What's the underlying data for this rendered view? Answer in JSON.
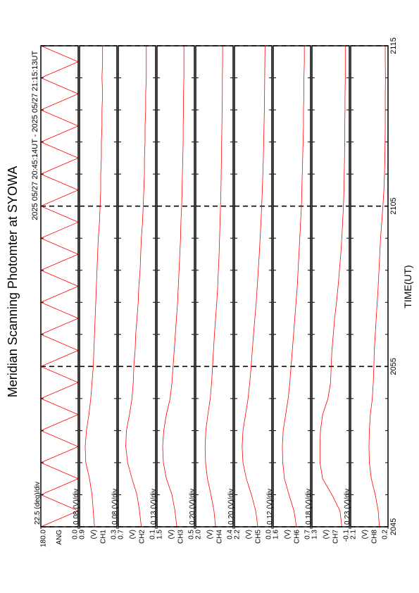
{
  "chart_data": {
    "type": "line",
    "title": "Meridian Scanning Photomter at SYOWA",
    "subtitle": "2025 05/27 20:45:14UT - 2025 05/27 21:15:13UT",
    "xlabel": "TIME(UT)",
    "xlim": [
      "2045",
      "2115"
    ],
    "xticks": [
      "2045",
      "2055",
      "2105",
      "2115"
    ],
    "xminorticks": [
      "2047",
      "2049",
      "2051",
      "2053",
      "2057",
      "2059",
      "2101",
      "2103",
      "2107",
      "2109",
      "2111",
      "2113"
    ],
    "x": [
      "2045",
      "2046",
      "2047",
      "2048",
      "2049",
      "2050",
      "2051",
      "2052",
      "2053",
      "2054",
      "2055",
      "2056",
      "2057",
      "2058",
      "2059",
      "2100",
      "2101",
      "2102",
      "2103",
      "2104",
      "2105",
      "2106",
      "2107",
      "2108",
      "2109",
      "2110",
      "2111",
      "2112",
      "2113",
      "2114",
      "2115"
    ],
    "panels": [
      {
        "scale": "22.5 (deg)/div",
        "ylabel": "ANG",
        "ylim": [
          0,
          180
        ],
        "yticks": [
          {
            "value": 0,
            "label": "0.0"
          },
          {
            "value": 180,
            "label": "180.0"
          }
        ],
        "series": [
          {
            "color": "#ff0000",
            "values": [
              180,
              0,
              180,
              0,
              180,
              0,
              180,
              0,
              180,
              0,
              180,
              0,
              180,
              0,
              180,
              0,
              180,
              0,
              180,
              0,
              180,
              0,
              180,
              0,
              180,
              0,
              180,
              0,
              180,
              0,
              180
            ]
          }
        ]
      },
      {
        "scale": "0.08 (V)/div",
        "unit": "(V)",
        "ylabel": "CH1",
        "ylim": [
          0.3,
          0.9
        ],
        "yticks": [
          0.3,
          0.9
        ],
        "series": [
          {
            "color": "#ff0000",
            "values": [
              0.66,
              0.68,
              0.7,
              0.74,
              0.8,
              0.81,
              0.79,
              0.75,
              0.72,
              0.7,
              0.68,
              0.67,
              0.66,
              0.65,
              0.64,
              0.63,
              0.62,
              0.61,
              0.6,
              0.58,
              0.57,
              0.56,
              0.56,
              0.55,
              0.55,
              0.54,
              0.54,
              0.53,
              0.54,
              0.53,
              0.53
            ]
          }
        ]
      },
      {
        "scale": "0.08 (V)/div",
        "unit": "(V)",
        "ylabel": "CH2",
        "ylim": [
          0.1,
          0.7
        ],
        "yticks": [
          0.1,
          0.7
        ],
        "series": [
          {
            "color": "#ff0000",
            "values": [
              0.33,
              0.36,
              0.4,
              0.48,
              0.55,
              0.58,
              0.57,
              0.52,
              0.48,
              0.46,
              0.45,
              0.43,
              0.42,
              0.4,
              0.38,
              0.37,
              0.35,
              0.34,
              0.33,
              0.31,
              0.3,
              0.29,
              0.28,
              0.28,
              0.27,
              0.27,
              0.26,
              0.26,
              0.25,
              0.25,
              0.25
            ]
          }
        ]
      },
      {
        "scale": "0.13 (V)/div",
        "unit": "(V)",
        "ylabel": "CH3",
        "ylim": [
          0.5,
          1.5
        ],
        "yticks": [
          0.5,
          1.5
        ],
        "series": [
          {
            "color": "#ff0000",
            "values": [
              0.97,
              1.02,
              1.1,
              1.25,
              1.33,
              1.35,
              1.32,
              1.25,
              1.15,
              1.1,
              1.07,
              1.04,
              1.01,
              0.98,
              0.95,
              0.93,
              0.91,
              0.89,
              0.87,
              0.86,
              0.84,
              0.83,
              0.82,
              0.81,
              0.8,
              0.8,
              0.79,
              0.79,
              0.78,
              0.78,
              0.78
            ]
          }
        ]
      },
      {
        "scale": "0.20 (V)/div",
        "unit": "(V)",
        "ylabel": "CH4",
        "ylim": [
          0.4,
          2.0
        ],
        "yticks": [
          0.4,
          {
            "value": 2.0,
            "label": "2.0"
          }
        ],
        "series": [
          {
            "color": "#ff0000",
            "values": [
              1.15,
              1.22,
              1.35,
              1.5,
              1.58,
              1.6,
              1.57,
              1.48,
              1.38,
              1.32,
              1.28,
              1.24,
              1.2,
              1.15,
              1.1,
              1.06,
              1.03,
              1.0,
              0.98,
              0.96,
              0.94,
              0.92,
              0.91,
              0.9,
              0.89,
              0.88,
              0.87,
              0.86,
              0.86,
              0.85,
              0.85
            ]
          }
        ]
      },
      {
        "scale": "0.20 (V)/div",
        "unit": "(V)",
        "ylabel": "CH5",
        "ylim": [
          0.0,
          2.2
        ],
        "yticks": [
          {
            "value": 0.0,
            "label": "0.0"
          },
          2.2
        ],
        "series": [
          {
            "color": "#ff0000",
            "values": [
              0.83,
              0.95,
              1.2,
              1.5,
              1.7,
              1.75,
              1.7,
              1.55,
              1.4,
              1.3,
              1.22,
              1.15,
              1.08,
              1.0,
              0.92,
              0.86,
              0.8,
              0.74,
              0.69,
              0.64,
              0.6,
              0.56,
              0.53,
              0.5,
              0.48,
              0.46,
              0.44,
              0.43,
              0.42,
              0.41,
              0.4
            ]
          }
        ]
      },
      {
        "scale": "0.12 (V)/div",
        "unit": "(V)",
        "ylabel": "CH6",
        "ylim": [
          0.7,
          1.6
        ],
        "yticks": [
          0.7,
          1.6
        ],
        "series": [
          {
            "color": "#ff0000",
            "values": [
              1.04,
              1.1,
              1.22,
              1.33,
              1.37,
              1.38,
              1.36,
              1.3,
              1.24,
              1.2,
              1.17,
              1.14,
              1.11,
              1.08,
              1.05,
              1.02,
              1.0,
              0.98,
              0.96,
              0.94,
              0.92,
              0.91,
              0.9,
              0.89,
              0.88,
              0.87,
              0.87,
              0.86,
              0.86,
              0.85,
              0.85
            ]
          }
        ]
      },
      {
        "scale": "0.18 (V)/div",
        "unit": "(V)",
        "ylabel": "CH7",
        "ylim": [
          -0.1,
          1.3
        ],
        "yticks": [
          -0.1,
          1.3
        ],
        "series": [
          {
            "color": "#ff0000",
            "values": [
              0.18,
              0.25,
              0.55,
              0.9,
              1.0,
              1.0,
              0.98,
              0.9,
              0.7,
              0.6,
              0.58,
              0.55,
              0.5,
              0.45,
              0.38,
              0.32,
              0.27,
              0.22,
              0.18,
              0.15,
              0.12,
              0.1,
              0.09,
              0.08,
              0.07,
              0.07,
              0.06,
              0.06,
              0.05,
              0.05,
              0.05
            ]
          }
        ]
      },
      {
        "scale": "0.23 (V)/div",
        "unit": "(V)",
        "ylabel": "CH8",
        "ylim": [
          0.2,
          2.1
        ],
        "yticks": [
          0.2,
          2.1
        ],
        "series": [
          {
            "color": "#ff0000",
            "values": [
              0.64,
              0.7,
              0.85,
              1.05,
              1.15,
              1.17,
              1.15,
              1.1,
              1.0,
              0.95,
              0.92,
              0.9,
              0.85,
              0.8,
              0.75,
              0.7,
              0.66,
              0.62,
              0.58,
              0.52,
              0.46,
              0.41,
              0.38,
              0.36,
              0.35,
              0.34,
              0.34,
              0.34,
              0.33,
              0.34,
              0.34
            ]
          }
        ]
      }
    ]
  }
}
